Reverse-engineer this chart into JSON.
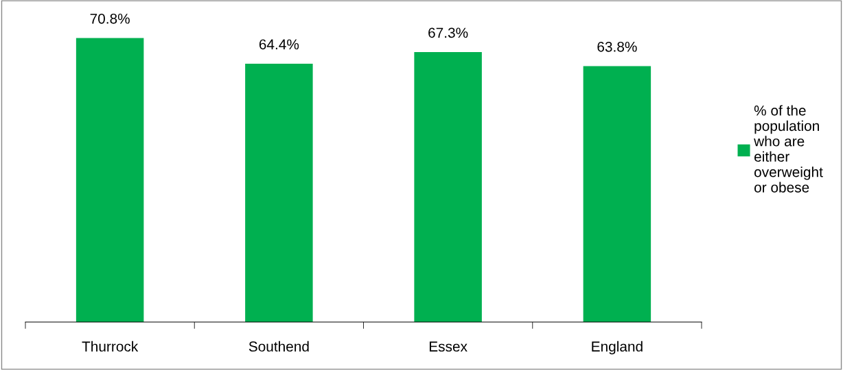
{
  "chart_data": {
    "type": "bar",
    "categories": [
      "Thurrock",
      "Southend",
      "Essex",
      "England"
    ],
    "series": [
      {
        "name": "% of the population who are either overweight or obese",
        "color": "#00b050",
        "values": [
          70.8,
          64.4,
          67.3,
          63.8
        ],
        "value_labels": [
          "70.8%",
          "64.4%",
          "67.3%",
          "63.8%"
        ]
      }
    ],
    "tick_labels": "x",
    "grid": false,
    "legend": "right"
  }
}
